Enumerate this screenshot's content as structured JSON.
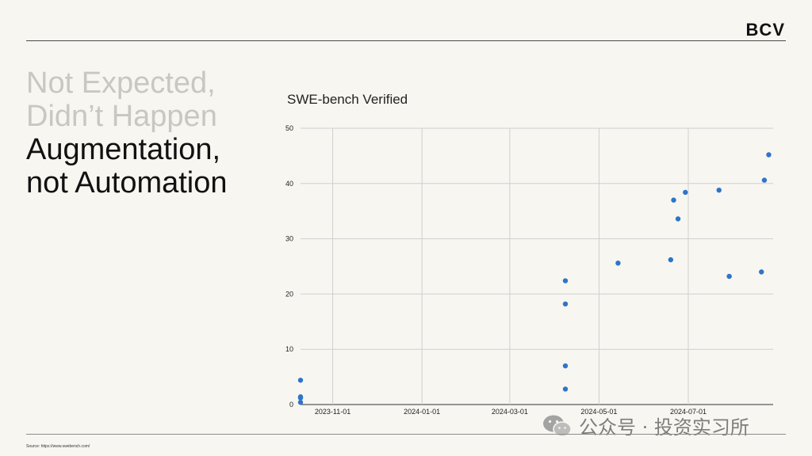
{
  "brand": {
    "logo_text": "BCV"
  },
  "headline": {
    "muted_lines": [
      "Not Expected,",
      "Didn’t Happen"
    ],
    "strong_lines": [
      "Augmentation,",
      "not Automation"
    ]
  },
  "source_note": "Source: https://www.swebench.com/",
  "watermark": {
    "text": "公众号 · 投资实习所",
    "icon": "wechat-icon"
  },
  "colors": {
    "point": "#2f74c9",
    "grid": "#cfcfcf",
    "text": "#111111"
  },
  "chart_data": {
    "type": "scatter",
    "title": "SWE-bench Verified",
    "xlabel": "",
    "ylabel": "",
    "x_ticks": [
      "2023-11-01",
      "2024-01-01",
      "2024-03-01",
      "2024-05-01",
      "2024-07-01"
    ],
    "xlim": [
      "2023-10-10",
      "2024-08-28"
    ],
    "ylim": [
      0,
      50
    ],
    "y_ticks": [
      0,
      10,
      20,
      30,
      40,
      50
    ],
    "grid": true,
    "series": [
      {
        "points": [
          {
            "x": "2023-10-10",
            "y": 4.4
          },
          {
            "x": "2023-10-10",
            "y": 1.4
          },
          {
            "x": "2023-10-10",
            "y": 1.2
          },
          {
            "x": "2023-10-10",
            "y": 0.4
          },
          {
            "x": "2024-04-08",
            "y": 22.4
          },
          {
            "x": "2024-04-08",
            "y": 18.2
          },
          {
            "x": "2024-04-08",
            "y": 7.0
          },
          {
            "x": "2024-04-08",
            "y": 2.8
          },
          {
            "x": "2024-05-14",
            "y": 25.6
          },
          {
            "x": "2024-06-19",
            "y": 26.2
          },
          {
            "x": "2024-06-21",
            "y": 37.0
          },
          {
            "x": "2024-06-24",
            "y": 33.6
          },
          {
            "x": "2024-06-29",
            "y": 38.4
          },
          {
            "x": "2024-07-22",
            "y": 38.8
          },
          {
            "x": "2024-07-29",
            "y": 23.2
          },
          {
            "x": "2024-08-20",
            "y": 24.0
          },
          {
            "x": "2024-08-22",
            "y": 40.6
          },
          {
            "x": "2024-08-25",
            "y": 45.2
          }
        ]
      }
    ]
  }
}
